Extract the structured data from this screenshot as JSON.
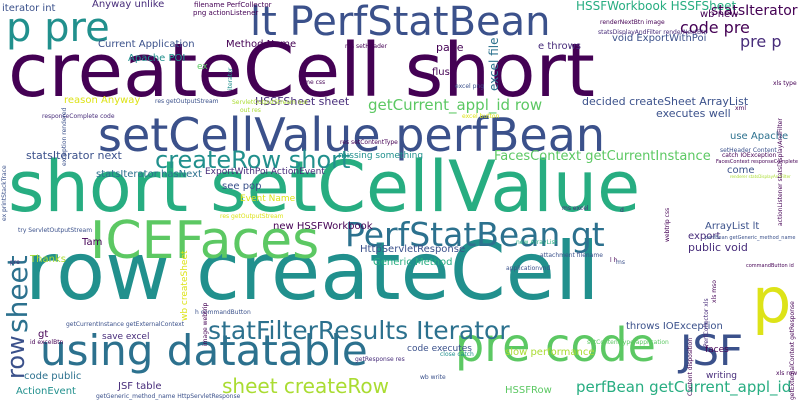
{
  "palette": {
    "dark_purple": "#440154",
    "purple": "#472c7a",
    "indigo": "#3b518b",
    "blue": "#2c718e",
    "teal": "#21908d",
    "green_teal": "#27ad81",
    "green": "#5cc863",
    "lime": "#aadc32",
    "yellow": "#dde318",
    "background": "#ffffff"
  },
  "words": [
    {
      "text": "createCell short",
      "color": "#440154",
      "orientation": "horizontal"
    },
    {
      "text": "row createCell",
      "color": "#21908d",
      "orientation": "horizontal"
    },
    {
      "text": "short setCellValue",
      "color": "#27ad81",
      "orientation": "horizontal"
    },
    {
      "text": "setCellValue perfBean",
      "color": "#3b518b",
      "orientation": "horizontal"
    },
    {
      "text": "ICEFaces",
      "color": "#5cc863",
      "orientation": "horizontal"
    },
    {
      "text": "lt PerfStatBean",
      "color": "#3b518b",
      "orientation": "horizontal"
    },
    {
      "text": "p pre",
      "color": "#21908d",
      "orientation": "horizontal"
    },
    {
      "text": "using datatable",
      "color": "#2c718e",
      "orientation": "horizontal"
    },
    {
      "text": "pre code",
      "color": "#5cc863",
      "orientation": "horizontal"
    },
    {
      "text": "JSF",
      "color": "#3b518b",
      "orientation": "horizontal"
    },
    {
      "text": "p",
      "color": "#dde318",
      "orientation": "horizontal"
    },
    {
      "text": "PerfStatBean gt",
      "color": "#2c718e",
      "orientation": "horizontal"
    },
    {
      "text": "createRow short",
      "color": "#21908d",
      "orientation": "horizontal"
    },
    {
      "text": "statFilterResults Iterator",
      "color": "#2c718e",
      "orientation": "horizontal"
    },
    {
      "text": "sheet createRow",
      "color": "#aadc32",
      "orientation": "horizontal"
    },
    {
      "text": "sheet",
      "color": "#2c718e",
      "orientation": "vertical"
    },
    {
      "text": "row",
      "color": "#3b518b",
      "orientation": "vertical"
    },
    {
      "text": "getCurrent_appl_id row",
      "color": "#5cc863",
      "orientation": "horizontal"
    },
    {
      "text": "perfBean getCurrent_appl_id",
      "color": "#27ad81",
      "orientation": "horizontal"
    },
    {
      "text": "FacesContext getCurrentInstance",
      "color": "#5cc863",
      "orientation": "horizontal"
    },
    {
      "text": "HSSFWorkbook HSSFSheet",
      "color": "#27ad81",
      "orientation": "horizontal"
    },
    {
      "text": "statsIterator",
      "color": "#440154",
      "orientation": "horizontal"
    },
    {
      "text": "code pre",
      "color": "#440154",
      "orientation": "horizontal"
    },
    {
      "text": "pre p",
      "color": "#472c7a",
      "orientation": "horizontal"
    },
    {
      "text": "wb new",
      "color": "#440154",
      "orientation": "horizontal"
    },
    {
      "text": "void ExportWithPoi",
      "color": "#3b518b",
      "orientation": "horizontal"
    },
    {
      "text": "e throws",
      "color": "#472c7a",
      "orientation": "horizontal"
    },
    {
      "text": "flush",
      "color": "#440154",
      "orientation": "horizontal"
    },
    {
      "text": "page",
      "color": "#440154",
      "orientation": "horizontal"
    },
    {
      "text": "excel file",
      "color": "#2c718e",
      "orientation": "vertical"
    },
    {
      "text": "executes well",
      "color": "#3b518b",
      "orientation": "horizontal"
    },
    {
      "text": "decided createSheet ArrayList",
      "color": "#3b518b",
      "orientation": "horizontal"
    },
    {
      "text": "use Apache",
      "color": "#2c718e",
      "orientation": "horizontal"
    },
    {
      "text": "HSSFSheet sheet",
      "color": "#472c7a",
      "orientation": "horizontal"
    },
    {
      "text": "statsIterator next",
      "color": "#3b518b",
      "orientation": "horizontal"
    },
    {
      "text": "statsIterator hasNext",
      "color": "#2c718e",
      "orientation": "horizontal"
    },
    {
      "text": "ExportWithPoi ActionEvent",
      "color": "#472c7a",
      "orientation": "horizontal"
    },
    {
      "text": "missing something",
      "color": "#21908d",
      "orientation": "horizontal"
    },
    {
      "text": "reason Anyway",
      "color": "#dde318",
      "orientation": "horizontal"
    },
    {
      "text": "Current Application",
      "color": "#3b518b",
      "orientation": "horizontal"
    },
    {
      "text": "Method Name",
      "color": "#440154",
      "orientation": "horizontal"
    },
    {
      "text": "Apache POI",
      "color": "#21908d",
      "orientation": "horizontal"
    },
    {
      "text": "Anyway unlike",
      "color": "#472c7a",
      "orientation": "horizontal"
    },
    {
      "text": "iterator int",
      "color": "#3b518b",
      "orientation": "horizontal"
    },
    {
      "text": "see pop",
      "color": "#3b518b",
      "orientation": "horizontal"
    },
    {
      "text": "Event Name",
      "color": "#dde318",
      "orientation": "horizontal"
    },
    {
      "text": "new HSSFWorkbook",
      "color": "#440154",
      "orientation": "horizontal"
    },
    {
      "text": "HttpServletResponse",
      "color": "#3b518b",
      "orientation": "horizontal"
    },
    {
      "text": "Generic Method",
      "color": "#27ad81",
      "orientation": "horizontal"
    },
    {
      "text": "export",
      "color": "#472c7a",
      "orientation": "horizontal"
    },
    {
      "text": "public void",
      "color": "#472c7a",
      "orientation": "horizontal"
    },
    {
      "text": "ArrayList lt",
      "color": "#3b518b",
      "orientation": "horizontal"
    },
    {
      "text": "come",
      "color": "#3b518b",
      "orientation": "horizontal"
    },
    {
      "text": "Tam",
      "color": "#440154",
      "orientation": "horizontal"
    },
    {
      "text": "Thanks",
      "color": "#aadc32",
      "orientation": "horizontal"
    },
    {
      "text": "gt",
      "color": "#440154",
      "orientation": "horizontal"
    },
    {
      "text": "save excel",
      "color": "#472c7a",
      "orientation": "horizontal"
    },
    {
      "text": "throws IOException",
      "color": "#3b518b",
      "orientation": "horizontal"
    },
    {
      "text": "code executes",
      "color": "#3b518b",
      "orientation": "horizontal"
    },
    {
      "text": "slow performance",
      "color": "#aadc32",
      "orientation": "horizontal"
    },
    {
      "text": "code public",
      "color": "#2c718e",
      "orientation": "horizontal"
    },
    {
      "text": "JSF table",
      "color": "#472c7a",
      "orientation": "horizontal"
    },
    {
      "text": "ActionEvent",
      "color": "#21908d",
      "orientation": "horizontal"
    },
    {
      "text": "HSSFRow",
      "color": "#5cc863",
      "orientation": "horizontal"
    },
    {
      "text": "writing",
      "color": "#472c7a",
      "orientation": "horizontal"
    },
    {
      "text": "faces",
      "color": "#440154",
      "orientation": "horizontal"
    },
    {
      "text": "ex",
      "color": "#5cc863",
      "orientation": "horizontal"
    },
    {
      "text": "wb createSheet",
      "color": "#dde318",
      "orientation": "vertical"
    },
    {
      "text": "filename PerfCollector",
      "color": "#440154",
      "orientation": "horizontal"
    },
    {
      "text": "png actionListener",
      "color": "#440154",
      "orientation": "horizontal"
    },
    {
      "text": "res setHeader",
      "color": "#440154",
      "orientation": "horizontal"
    },
    {
      "text": "renderNextBtn image",
      "color": "#440154",
      "orientation": "horizontal"
    },
    {
      "text": "statsDisplayAndFilter renderNextBtn",
      "color": "#472c7a",
      "orientation": "horizontal"
    },
    {
      "text": "res getOutputStream",
      "color": "#3b518b",
      "orientation": "horizontal"
    },
    {
      "text": "responseComplete code",
      "color": "#472c7a",
      "orientation": "horizontal"
    },
    {
      "text": "excel png",
      "color": "#3b518b",
      "orientation": "horizontal"
    },
    {
      "text": "rime css",
      "color": "#440154",
      "orientation": "horizontal"
    },
    {
      "text": "ex printStackTrace",
      "color": "#3b518b",
      "orientation": "vertical"
    },
    {
      "text": "catch IOException",
      "color": "#440154",
      "orientation": "horizontal"
    },
    {
      "text": "FacesContext responseComplete",
      "color": "#440154",
      "orientation": "horizontal"
    },
    {
      "text": "setHeader Content",
      "color": "#3b518b",
      "orientation": "horizontal"
    },
    {
      "text": "renderer statsDisplayAndFilter",
      "color": "#aadc32",
      "orientation": "horizontal"
    },
    {
      "text": "try ServletOutputStream",
      "color": "#3b518b",
      "orientation": "horizontal"
    },
    {
      "text": "res setContentType",
      "color": "#440154",
      "orientation": "horizontal"
    },
    {
      "text": "getCurrentInstance getExternalContext",
      "color": "#3b518b",
      "orientation": "horizontal"
    },
    {
      "text": "commandButton id",
      "color": "#440154",
      "orientation": "horizontal"
    },
    {
      "text": "perfBean getGeneric_method_name",
      "color": "#3b518b",
      "orientation": "horizontal"
    },
    {
      "text": "setContentType application",
      "color": "#5cc863",
      "orientation": "horizontal"
    },
    {
      "text": "getGeneric_method_name HttpServletResponse",
      "color": "#3b518b",
      "orientation": "horizontal"
    },
    {
      "text": "close catch",
      "color": "#21908d",
      "orientation": "horizontal"
    },
    {
      "text": "id excelBtn",
      "color": "#440154",
      "orientation": "horizontal"
    },
    {
      "text": "h commandButton",
      "color": "#3b518b",
      "orientation": "horizontal"
    },
    {
      "text": "getResponse res",
      "color": "#472c7a",
      "orientation": "horizontal"
    },
    {
      "text": "res getOutputStream",
      "color": "#dde318",
      "orientation": "horizontal"
    },
    {
      "text": "excel button",
      "color": "#dde318",
      "orientation": "horizontal"
    },
    {
      "text": "xls type",
      "color": "#440154",
      "orientation": "horizontal"
    },
    {
      "text": "wb write",
      "color": "#3b518b",
      "orientation": "horizontal"
    },
    {
      "text": "l h",
      "color": "#440154",
      "orientation": "horizontal"
    },
    {
      "text": "xls row",
      "color": "#440154",
      "orientation": "horizontal"
    },
    {
      "text": "ms excel",
      "color": "#472c7a",
      "orientation": "horizontal"
    },
    {
      "text": "webtrip css",
      "color": "#440154",
      "orientation": "vertical"
    },
    {
      "text": "image webtrip",
      "color": "#440154",
      "orientation": "vertical"
    },
    {
      "text": "Content disposition",
      "color": "#440154",
      "orientation": "vertical"
    },
    {
      "text": "actionListener statsDisplayAndFilter",
      "color": "#440154",
      "orientation": "vertical"
    },
    {
      "text": "exception rendered",
      "color": "#3b518b",
      "orientation": "vertical"
    },
    {
      "text": "PerfCollector xls",
      "color": "#472c7a",
      "orientation": "vertical"
    },
    {
      "text": "xls mso",
      "color": "#440154",
      "orientation": "vertical"
    },
    {
      "text": "getExternalContext getResponse",
      "color": "#440154",
      "orientation": "vertical"
    },
    {
      "text": "new ArrayList",
      "color": "#27ad81",
      "orientation": "horizontal"
    },
    {
      "text": "attachment filename",
      "color": "#3b518b",
      "orientation": "horizontal"
    },
    {
      "text": "applicationvnd",
      "color": "#3b518b",
      "orientation": "horizontal"
    },
    {
      "text": "ms",
      "color": "#3b518b",
      "orientation": "horizontal"
    },
    {
      "text": "xml",
      "color": "#440154",
      "orientation": "horizontal"
    },
    {
      "text": "ServletOutputStream out",
      "color": "#aadc32",
      "orientation": "horizontal"
    },
    {
      "text": "out res",
      "color": "#aadc32",
      "orientation": "horizontal"
    },
    {
      "text": "pre",
      "color": "#472c7a",
      "orientation": "horizontal"
    },
    {
      "text": "d",
      "color": "#472c7a",
      "orientation": "horizontal"
    },
    {
      "text": "iterator",
      "color": "#21908d",
      "orientation": "vertical"
    }
  ]
}
